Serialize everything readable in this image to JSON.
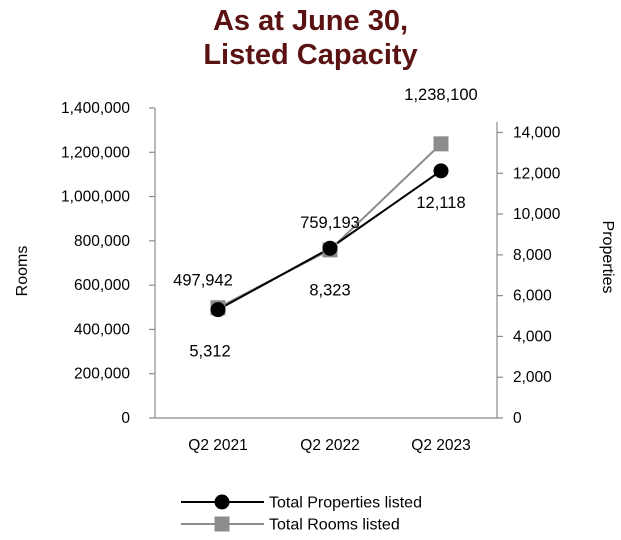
{
  "chart_data": {
    "type": "line",
    "title_lines": [
      "As at June 30,",
      "Listed Capacity"
    ],
    "categories": [
      "Q2 2021",
      "Q2 2022",
      "Q2 2023"
    ],
    "left_axis": {
      "label": "Rooms",
      "ylim": [
        0,
        1400000
      ],
      "ticks": [
        "0",
        "200,000",
        "400,000",
        "600,000",
        "800,000",
        "1,000,000",
        "1,200,000",
        "1,400,000"
      ]
    },
    "right_axis": {
      "label": "Properties",
      "ylim": [
        0,
        15200
      ],
      "ticks": [
        "0",
        "2,000",
        "4,000",
        "6,000",
        "8,000",
        "10,000",
        "12,000",
        "14,000"
      ]
    },
    "series": [
      {
        "name": "Total Properties listed",
        "axis": "right",
        "color": "#000000",
        "marker": "circle",
        "values": [
          5312,
          8323,
          12118
        ],
        "labels": [
          "5,312",
          "8,323",
          "12,118"
        ]
      },
      {
        "name": "Total Rooms listed",
        "axis": "left",
        "color": "#8c8c8c",
        "marker": "square",
        "values": [
          497942,
          759193,
          1238100
        ],
        "labels": [
          "497,942",
          "759,193",
          "1,238,100"
        ]
      }
    ],
    "grid": false,
    "legend": "bottom"
  }
}
